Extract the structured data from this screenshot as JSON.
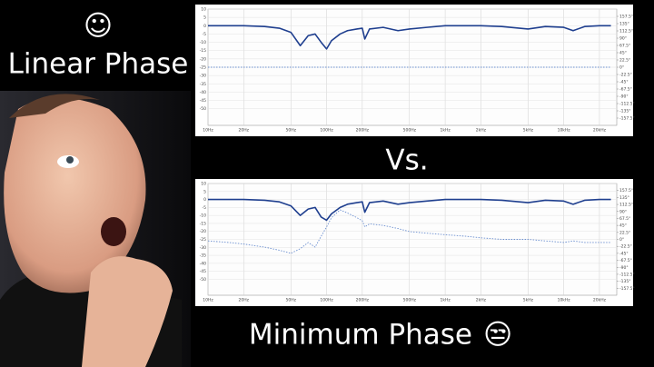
{
  "texts": {
    "smile": "☺",
    "linear": "Linear Phase",
    "vs": "Vs.",
    "minimum": "Minimum Phase",
    "unamused": "😒"
  },
  "chart_data": [
    {
      "type": "line",
      "xscale": "log",
      "grid": true,
      "x": [
        10,
        15,
        20,
        30,
        40,
        50,
        60,
        70,
        80,
        90,
        100,
        110,
        130,
        150,
        180,
        200,
        210,
        230,
        300,
        400,
        500,
        700,
        1000,
        1500,
        2000,
        3000,
        5000,
        7000,
        10000,
        12000,
        15000,
        20000,
        25000
      ],
      "xlim": [
        10,
        28000
      ],
      "xticks": [
        {
          "value": 10,
          "label": "10Hz"
        },
        {
          "value": 20,
          "label": "20Hz"
        },
        {
          "value": 50,
          "label": "50Hz"
        },
        {
          "value": 100,
          "label": "100Hz"
        },
        {
          "value": 200,
          "label": "200Hz"
        },
        {
          "value": 500,
          "label": "500Hz"
        },
        {
          "value": 1000,
          "label": "1kHz"
        },
        {
          "value": 2000,
          "label": "2kHz"
        },
        {
          "value": 5000,
          "label": "5kHz"
        },
        {
          "value": 10000,
          "label": "10kHz"
        },
        {
          "value": 20000,
          "label": "20kHz"
        }
      ],
      "ylim": [
        -60,
        10
      ],
      "yticks": [
        10,
        5,
        0,
        -5,
        -10,
        -15,
        -20,
        -25,
        -30,
        -35,
        -40,
        -45,
        -50
      ],
      "y2lim": [
        -180,
        180
      ],
      "y2ticks": [
        {
          "value": 157.5,
          "label": "157.5°"
        },
        {
          "value": 135,
          "label": "135°"
        },
        {
          "value": 112.5,
          "label": "112.5°"
        },
        {
          "value": 90,
          "label": "90°"
        },
        {
          "value": 67.5,
          "label": "67.5°"
        },
        {
          "value": 45,
          "label": "45°"
        },
        {
          "value": 22.5,
          "label": "22.5°"
        },
        {
          "value": 0,
          "label": "0°"
        },
        {
          "value": -22.5,
          "label": "-22.5°"
        },
        {
          "value": -45,
          "label": "-45°"
        },
        {
          "value": -67.5,
          "label": "-67.5°"
        },
        {
          "value": -90,
          "label": "-90°"
        },
        {
          "value": -112.5,
          "label": "-112.5°"
        },
        {
          "value": -135,
          "label": "-135°"
        },
        {
          "value": -157.5,
          "label": "-157.5°"
        }
      ],
      "series": [
        {
          "color": "#1f3f8f",
          "dashed": false,
          "values": [
            0,
            0,
            0,
            -0.5,
            -1.5,
            -4,
            -12,
            -6,
            -5,
            -10,
            -14,
            -9,
            -5,
            -3,
            -2,
            -1.5,
            -8,
            -2,
            -1,
            -3,
            -2,
            -1,
            0,
            0,
            0,
            -0.5,
            -2,
            -0.5,
            -1,
            -3,
            -0.5,
            0,
            0
          ]
        },
        {
          "color": "#6b8fd0",
          "dashed": true,
          "axis": "y2",
          "values": [
            0,
            0,
            0,
            0,
            0,
            0,
            0,
            0,
            0,
            0,
            0,
            0,
            0,
            0,
            0,
            0,
            0,
            0,
            0,
            0,
            0,
            0,
            0,
            0,
            0,
            0,
            0,
            0,
            0,
            0,
            0,
            0,
            0
          ]
        }
      ]
    },
    {
      "type": "line",
      "xscale": "log",
      "grid": true,
      "x": [
        10,
        15,
        20,
        30,
        40,
        50,
        60,
        70,
        80,
        90,
        100,
        110,
        130,
        150,
        180,
        200,
        210,
        230,
        300,
        400,
        500,
        700,
        1000,
        1500,
        2000,
        3000,
        5000,
        7000,
        10000,
        12000,
        15000,
        20000,
        25000
      ],
      "xlim": [
        10,
        28000
      ],
      "xticks": [
        {
          "value": 10,
          "label": "10Hz"
        },
        {
          "value": 20,
          "label": "20Hz"
        },
        {
          "value": 50,
          "label": "50Hz"
        },
        {
          "value": 100,
          "label": "100Hz"
        },
        {
          "value": 200,
          "label": "200Hz"
        },
        {
          "value": 500,
          "label": "500Hz"
        },
        {
          "value": 1000,
          "label": "1kHz"
        },
        {
          "value": 2000,
          "label": "2kHz"
        },
        {
          "value": 5000,
          "label": "5kHz"
        },
        {
          "value": 10000,
          "label": "10kHz"
        },
        {
          "value": 20000,
          "label": "20kHz"
        }
      ],
      "ylim": [
        -60,
        10
      ],
      "yticks": [
        10,
        5,
        0,
        -5,
        -10,
        -15,
        -20,
        -25,
        -30,
        -35,
        -40,
        -45,
        -50
      ],
      "y2lim": [
        -180,
        180
      ],
      "y2ticks": [
        {
          "value": 157.5,
          "label": "157.5°"
        },
        {
          "value": 135,
          "label": "135°"
        },
        {
          "value": 112.5,
          "label": "112.5°"
        },
        {
          "value": 90,
          "label": "90°"
        },
        {
          "value": 67.5,
          "label": "67.5°"
        },
        {
          "value": 45,
          "label": "45°"
        },
        {
          "value": 22.5,
          "label": "22.5°"
        },
        {
          "value": 0,
          "label": "0°"
        },
        {
          "value": -22.5,
          "label": "-22.5°"
        },
        {
          "value": -45,
          "label": "-45°"
        },
        {
          "value": -67.5,
          "label": "-67.5°"
        },
        {
          "value": -90,
          "label": "-90°"
        },
        {
          "value": -112.5,
          "label": "-112.5°"
        },
        {
          "value": -135,
          "label": "-135°"
        },
        {
          "value": -157.5,
          "label": "-157.5°"
        }
      ],
      "series": [
        {
          "color": "#1f3f8f",
          "dashed": false,
          "values": [
            0,
            0,
            0,
            -0.5,
            -1.5,
            -4,
            -10,
            -6,
            -5,
            -11,
            -13,
            -9,
            -5,
            -3,
            -2,
            -1.5,
            -8,
            -2,
            -1,
            -3,
            -2,
            -1,
            0,
            0,
            0,
            -0.5,
            -2,
            -0.5,
            -1,
            -3,
            -0.5,
            0,
            0
          ]
        },
        {
          "color": "#6b8fd0",
          "dashed": true,
          "axis": "y2",
          "values": [
            -5,
            -10,
            -15,
            -25,
            -35,
            -45,
            -30,
            -10,
            -25,
            10,
            40,
            70,
            95,
            85,
            70,
            60,
            40,
            50,
            45,
            35,
            25,
            20,
            15,
            10,
            5,
            0,
            0,
            -5,
            -10,
            -5,
            -10,
            -10,
            -10
          ]
        }
      ]
    }
  ]
}
